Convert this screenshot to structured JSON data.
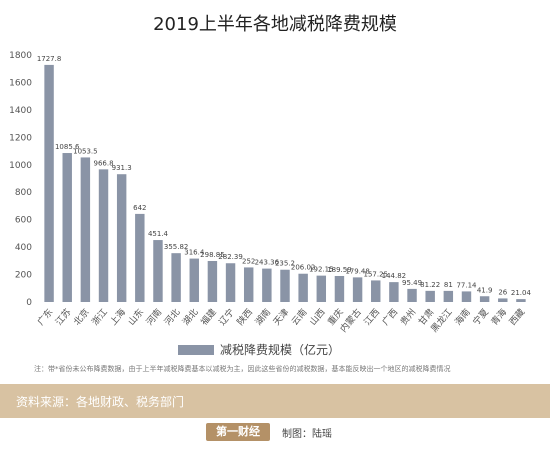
{
  "chart_data": {
    "type": "bar",
    "title": "2019上半年各地减税降费规模",
    "categories": [
      "广东",
      "江苏",
      "北京",
      "浙江",
      "上海",
      "山东",
      "河南",
      "河北",
      "湖北",
      "福建",
      "辽宁",
      "陕西",
      "湖南",
      "天津",
      "云南",
      "山西",
      "重庆",
      "内蒙古",
      "江西",
      "广西",
      "贵州",
      "甘肃",
      "黑龙江",
      "海南",
      "宁夏",
      "青海",
      "西藏"
    ],
    "values": [
      1727.8,
      1085.6,
      1053.5,
      966.8,
      931.3,
      642,
      451.4,
      355.82,
      316.4,
      298.85,
      282.39,
      252,
      243.36,
      235.2,
      206.02,
      192.15,
      189.59,
      179.48,
      157.25,
      144.82,
      95.49,
      81.22,
      81,
      77.14,
      41.9,
      26,
      21.04
    ],
    "value_labels": [
      "1727.8",
      "1085.6",
      "1053.5",
      "966.8",
      "931.3",
      "642",
      "451.4",
      "355.82",
      "316.4",
      "298.85",
      "282.39",
      "252",
      "243.36",
      "235.2",
      "206.02",
      "192.15",
      "189.59",
      "179.48",
      "157.25",
      "144.82",
      "95.49",
      "81.22",
      "81",
      "77.14",
      "41.9",
      "26",
      "21.04"
    ],
    "series_name": "减税降费规模（亿元）",
    "ylim": [
      0,
      1800
    ],
    "yticks": [
      "0",
      "200",
      "400",
      "600",
      "800",
      "1000",
      "1200",
      "1400",
      "1600",
      "1800"
    ],
    "bar_color": "#8a94a6",
    "grid": false,
    "legend": "bottom-center"
  },
  "note": "注：带*省份未公布降费数据，由于上半年减税降费基本以减税为主，因此这些省份的减税数据，基本能反映出一个地区的减税降费情况",
  "source": "资料来源：各地财政、税务部门",
  "logo_text": "第一财经",
  "credit": "制图：陆瑶"
}
